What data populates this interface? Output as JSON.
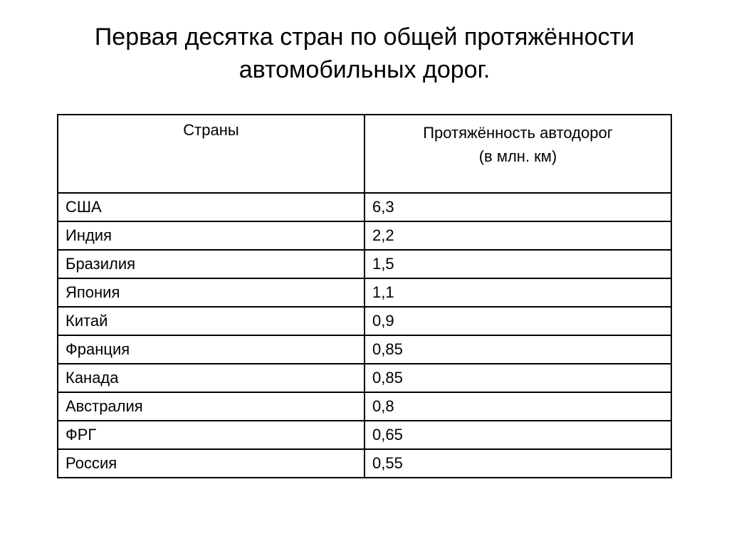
{
  "page": {
    "title": "Первая десятка стран по общей протяжённости автомобильных дорог."
  },
  "table": {
    "headers": {
      "country": "Страны",
      "value_line1": "Протяжённость автодорог",
      "value_line2": "(в млн. км)"
    },
    "rows": [
      {
        "country": "США",
        "value": "6,3"
      },
      {
        "country": "Индия",
        "value": "2,2"
      },
      {
        "country": "Бразилия",
        "value": "1,5"
      },
      {
        "country": "Япония",
        "value": "1,1"
      },
      {
        "country": "Китай",
        "value": "0,9"
      },
      {
        "country": "Франция",
        "value": "0,85"
      },
      {
        "country": "Канада",
        "value": "0,85"
      },
      {
        "country": "Австралия",
        "value": "0,8"
      },
      {
        "country": "ФРГ",
        "value": "0,65"
      },
      {
        "country": "Россия",
        "value": "0,55"
      }
    ]
  },
  "styling": {
    "background_color": "#ffffff",
    "text_color": "#000000",
    "border_color": "#000000",
    "border_width": 2,
    "title_fontsize": 34,
    "cell_fontsize": 22,
    "font_family": "Arial",
    "column_widths": [
      0.5,
      0.5
    ]
  }
}
